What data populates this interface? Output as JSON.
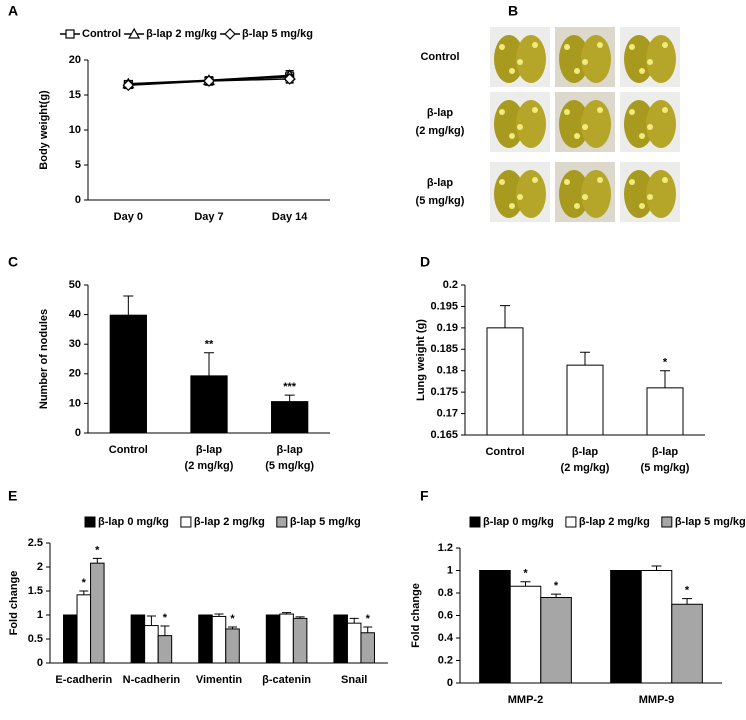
{
  "chart_data": [
    {
      "panel": "A",
      "type": "line",
      "ylabel": "Body weight(g)",
      "categories": [
        "Day 0",
        "Day 7",
        "Day 14"
      ],
      "ylim": [
        0,
        20
      ],
      "yticks": [
        0,
        5,
        10,
        15,
        20
      ],
      "legend": "top",
      "series": [
        {
          "name": "Control",
          "color": "#000000",
          "marker": "square",
          "values": [
            16.5,
            17.0,
            17.6
          ],
          "errors": [
            0.5,
            0.6,
            0.8
          ]
        },
        {
          "name": "β-lap 2 mg/kg",
          "color": "#000000",
          "marker": "triangle",
          "values": [
            16.6,
            17.1,
            17.8
          ],
          "errors": [
            0.4,
            0.5,
            0.7
          ]
        },
        {
          "name": "β-lap 5 mg/kg",
          "color": "#000000",
          "marker": "diamond",
          "values": [
            16.4,
            17.0,
            17.3
          ],
          "errors": [
            0.4,
            0.5,
            0.6
          ]
        }
      ]
    },
    {
      "panel": "B",
      "type": "image-grid",
      "rows": [
        [
          "Control"
        ],
        [
          "β-lap",
          "(2 mg/kg)"
        ],
        [
          "β-lap",
          "(5 mg/kg)"
        ]
      ]
    },
    {
      "panel": "C",
      "type": "bar",
      "ylabel": "Number of nodules",
      "categories": [
        [
          "Control"
        ],
        [
          "β-lap",
          "(2 mg/kg)"
        ],
        [
          "β-lap",
          "(5 mg/kg)"
        ]
      ],
      "values": [
        39.8,
        19.3,
        10.6
      ],
      "errors": [
        6.5,
        7.8,
        2.2
      ],
      "annotations": [
        null,
        "**",
        "***"
      ],
      "color": "#000000",
      "ylim": [
        0,
        50
      ],
      "yticks": [
        0,
        10,
        20,
        30,
        40,
        50
      ]
    },
    {
      "panel": "D",
      "type": "bar",
      "ylabel": "Lung weight (g)",
      "categories": [
        [
          "Control"
        ],
        [
          "β-lap",
          "(2 mg/kg)"
        ],
        [
          "β-lap",
          "(5 mg/kg)"
        ]
      ],
      "values": [
        0.19,
        0.1813,
        0.176
      ],
      "errors": [
        0.0052,
        0.003,
        0.004
      ],
      "annotations": [
        null,
        null,
        "*"
      ],
      "color": "#ffffff",
      "ylim": [
        0.165,
        0.2
      ],
      "yticks": [
        0.165,
        0.17,
        0.175,
        0.18,
        0.185,
        0.19,
        0.195,
        0.2
      ]
    },
    {
      "panel": "E",
      "type": "bar",
      "ylabel": "Fold change",
      "legend": "top",
      "categories": [
        [
          "E-cadherin"
        ],
        [
          "N-cadherin"
        ],
        [
          "Vimentin"
        ],
        [
          "β-catenin"
        ],
        [
          "Snail"
        ]
      ],
      "ylim": [
        0,
        2.5
      ],
      "yticks": [
        0,
        0.5,
        1,
        1.5,
        2,
        2.5
      ],
      "series": [
        {
          "name": "β-lap 0 mg/kg",
          "color": "#000000",
          "values": [
            1,
            1,
            1,
            1,
            1
          ]
        },
        {
          "name": "β-lap 2 mg/kg",
          "color": "#ffffff",
          "values": [
            1.42,
            0.78,
            0.97,
            1.02,
            0.83
          ],
          "errors": [
            0.08,
            0.2,
            0.05,
            0.03,
            0.1
          ],
          "annotations": [
            "*",
            null,
            null,
            null,
            null
          ]
        },
        {
          "name": "β-lap 5 mg/kg",
          "color": "#a6a6a6",
          "values": [
            2.08,
            0.57,
            0.71,
            0.93,
            0.63
          ],
          "errors": [
            0.1,
            0.2,
            0.04,
            0.03,
            0.12
          ],
          "annotations": [
            "*",
            "*",
            "*",
            null,
            "*"
          ]
        }
      ]
    },
    {
      "panel": "F",
      "type": "bar",
      "ylabel": "Fold change",
      "legend": "top",
      "categories": [
        [
          "MMP-2"
        ],
        [
          "MMP-9"
        ]
      ],
      "ylim": [
        0,
        1.2
      ],
      "yticks": [
        0,
        0.2,
        0.4,
        0.6,
        0.8,
        1,
        1.2
      ],
      "series": [
        {
          "name": "β-lap 0 mg/kg",
          "color": "#000000",
          "values": [
            1,
            1
          ]
        },
        {
          "name": "β-lap 2 mg/kg",
          "color": "#ffffff",
          "values": [
            0.86,
            1.0
          ],
          "errors": [
            0.04,
            0.04
          ],
          "annotations": [
            "*",
            null
          ]
        },
        {
          "name": "β-lap 5 mg/kg",
          "color": "#a6a6a6",
          "values": [
            0.76,
            0.7
          ],
          "errors": [
            0.03,
            0.05
          ],
          "annotations": [
            "*",
            "*"
          ]
        }
      ]
    }
  ]
}
